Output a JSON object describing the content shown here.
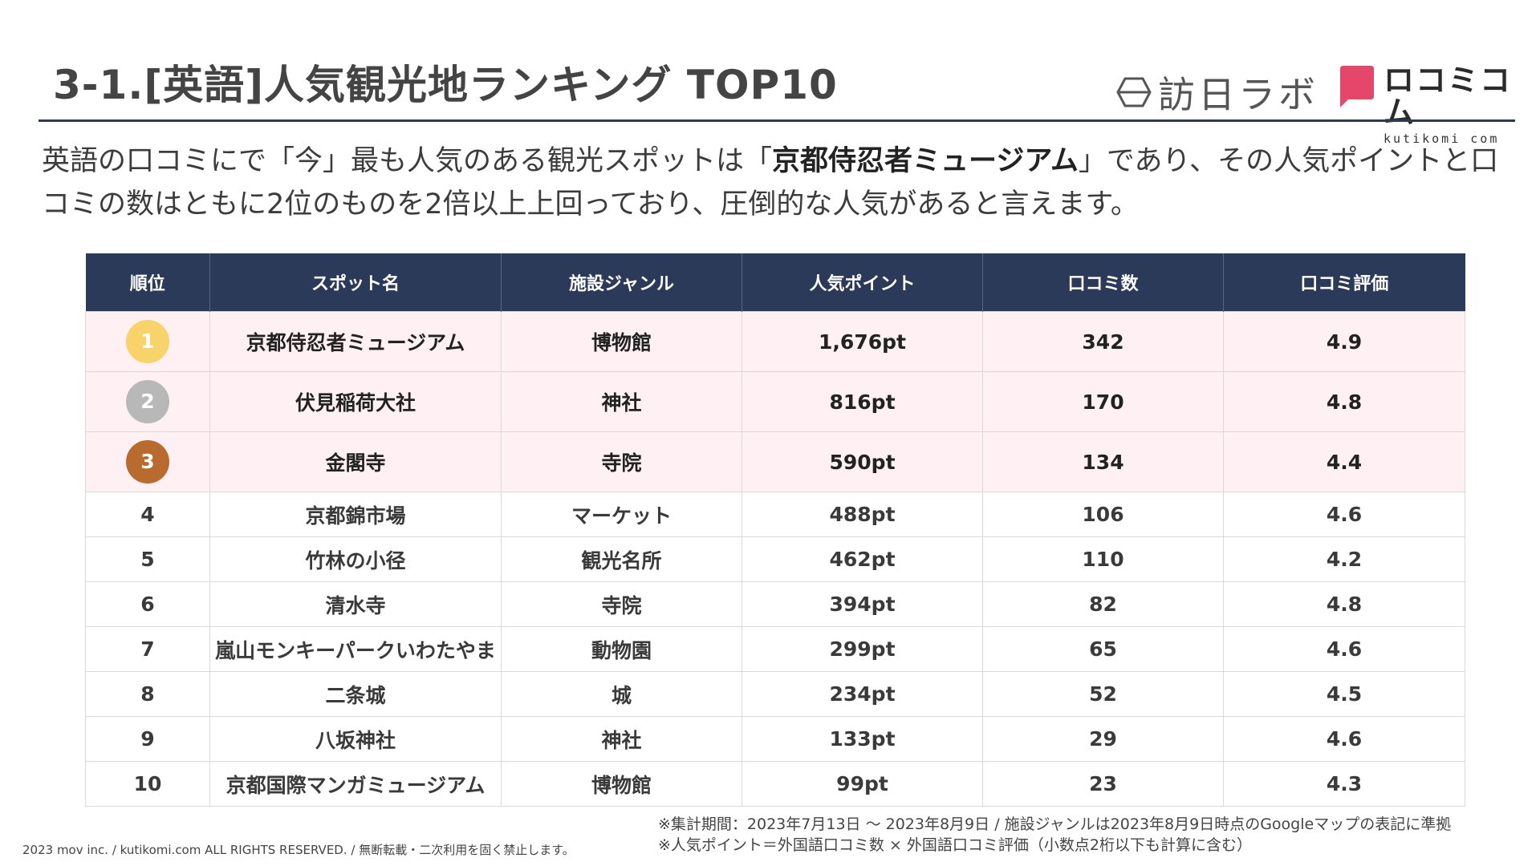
{
  "title": "3-1.[英語]人気観光地ランキング TOP10",
  "logos": {
    "brand_left": "訪日ラボ",
    "brand_right_jp": "ロコミコム",
    "brand_right_en": "kutikomi com"
  },
  "lead": {
    "before": "英語の口コミにで「今」最も人気のある観光スポットは「",
    "highlight": "京都侍忍者ミュージアム",
    "after": "」であり、その人気ポイントと口コミの数はともに2位のものを2倍以上上回っており、圧倒的な人気があると言えます。"
  },
  "table": {
    "headers": [
      "順位",
      "スポット名",
      "施設ジャンル",
      "人気ポイント",
      "口コミ数",
      "口コミ評価"
    ],
    "rows": [
      {
        "rank": "1",
        "name": "京都侍忍者ミュージアム",
        "genre": "博物館",
        "points": "1,676pt",
        "reviews": "342",
        "rating": "4.9"
      },
      {
        "rank": "2",
        "name": "伏見稲荷大社",
        "genre": "神社",
        "points": "816pt",
        "reviews": "170",
        "rating": "4.8"
      },
      {
        "rank": "3",
        "name": "金閣寺",
        "genre": "寺院",
        "points": "590pt",
        "reviews": "134",
        "rating": "4.4"
      },
      {
        "rank": "4",
        "name": "京都錦市場",
        "genre": "マーケット",
        "points": "488pt",
        "reviews": "106",
        "rating": "4.6"
      },
      {
        "rank": "5",
        "name": "竹林の小径",
        "genre": "観光名所",
        "points": "462pt",
        "reviews": "110",
        "rating": "4.2"
      },
      {
        "rank": "6",
        "name": "清水寺",
        "genre": "寺院",
        "points": "394pt",
        "reviews": "82",
        "rating": "4.8"
      },
      {
        "rank": "7",
        "name": "嵐山モンキーパークいわたやま",
        "genre": "動物園",
        "points": "299pt",
        "reviews": "65",
        "rating": "4.6"
      },
      {
        "rank": "8",
        "name": "二条城",
        "genre": "城",
        "points": "234pt",
        "reviews": "52",
        "rating": "4.5"
      },
      {
        "rank": "9",
        "name": "八坂神社",
        "genre": "神社",
        "points": "133pt",
        "reviews": "29",
        "rating": "4.6"
      },
      {
        "rank": "10",
        "name": "京都国際マンガミュージアム",
        "genre": "博物館",
        "points": "99pt",
        "reviews": "23",
        "rating": "4.3"
      }
    ]
  },
  "notes": {
    "line1": "※集計期間：2023年7月13日 〜 2023年8月9日 / 施設ジャンルは2023年8月9日時点のGoogleマップの表記に準拠",
    "line2": "※人気ポイント＝外国語口コミ数 × 外国語口コミ評価（小数点2桁以下も計算に含む）"
  },
  "copyright": "2023 mov inc. / kutikomi.com ALL RIGHTS RESERVED. / 無断転載・二次利用を固く禁止します。",
  "colors": {
    "header_bg": "#2b3a59",
    "top3_row_bg": "#fff0f4",
    "gold": "#f7d36a",
    "silver": "#b8b8b8",
    "bronze": "#b86b2c",
    "brand_pink": "#e5476b"
  },
  "icons": {
    "brand_left_mark": "hexagon-icon",
    "brand_right_mark": "speech-bubble-icon"
  }
}
